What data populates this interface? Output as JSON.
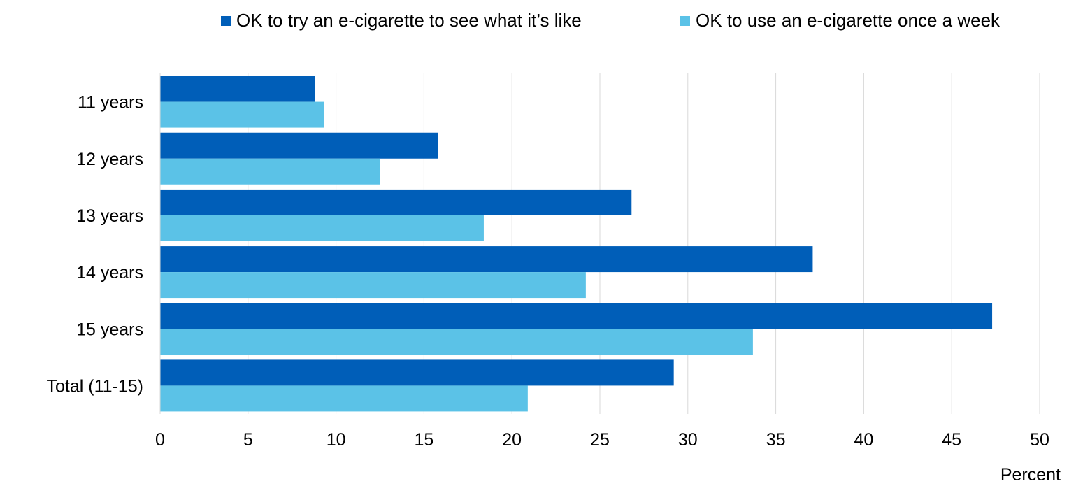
{
  "chart_data": {
    "type": "bar",
    "orientation": "horizontal",
    "categories": [
      "11 years",
      "12 years",
      "13 years",
      "14 years",
      "15 years",
      "Total (11-15)"
    ],
    "series": [
      {
        "name": "OK to try an e-cigarette to see what it’s like",
        "color": "#005EB8",
        "values": [
          8.8,
          15.8,
          26.8,
          37.1,
          47.3,
          29.2
        ]
      },
      {
        "name": "OK to use an e-cigarette once a week",
        "color": "#5BC2E7",
        "values": [
          9.3,
          12.5,
          18.4,
          24.2,
          33.7,
          20.9
        ]
      }
    ],
    "xlabel": "Percent",
    "ylabel": "",
    "xlim": [
      0,
      50
    ],
    "xticks": [
      "0",
      "5",
      "10",
      "15",
      "20",
      "25",
      "30",
      "35",
      "40",
      "45",
      "50"
    ],
    "grid": true,
    "legend_position": "top"
  }
}
